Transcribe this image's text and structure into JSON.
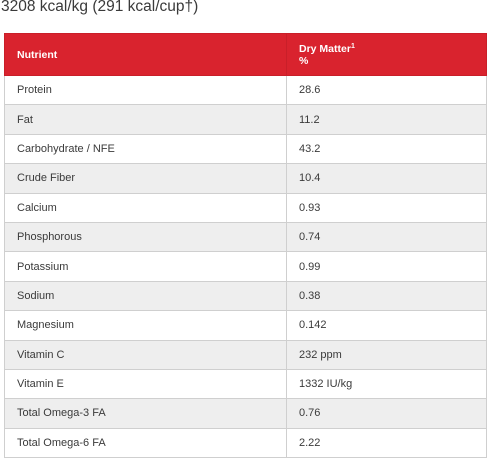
{
  "heading": "3208 kcal/kg (291 kcal/cup†)",
  "table": {
    "header": {
      "nutrient": "Nutrient",
      "dry_matter": "Dry Matter",
      "dry_matter_sup": "1",
      "dry_matter_unit": "%"
    },
    "rows": [
      {
        "nutrient": "Protein",
        "value": "28.6"
      },
      {
        "nutrient": "Fat",
        "value": "11.2"
      },
      {
        "nutrient": "Carbohydrate / NFE",
        "value": "43.2"
      },
      {
        "nutrient": "Crude Fiber",
        "value": "10.4"
      },
      {
        "nutrient": "Calcium",
        "value": "0.93"
      },
      {
        "nutrient": "Phosphorous",
        "value": "0.74"
      },
      {
        "nutrient": "Potassium",
        "value": "0.99"
      },
      {
        "nutrient": "Sodium",
        "value": "0.38"
      },
      {
        "nutrient": "Magnesium",
        "value": "0.142"
      },
      {
        "nutrient": "Vitamin C",
        "value": "232 ppm"
      },
      {
        "nutrient": "Vitamin E",
        "value": "1332 IU/kg"
      },
      {
        "nutrient": "Total Omega-3 FA",
        "value": "0.76"
      },
      {
        "nutrient": "Total Omega-6 FA",
        "value": "2.22"
      }
    ]
  },
  "colors": {
    "header_background": "#d9232e",
    "header_text": "#ffffff",
    "stripe_background": "#eeeeee",
    "border": "#cfcfcf"
  }
}
